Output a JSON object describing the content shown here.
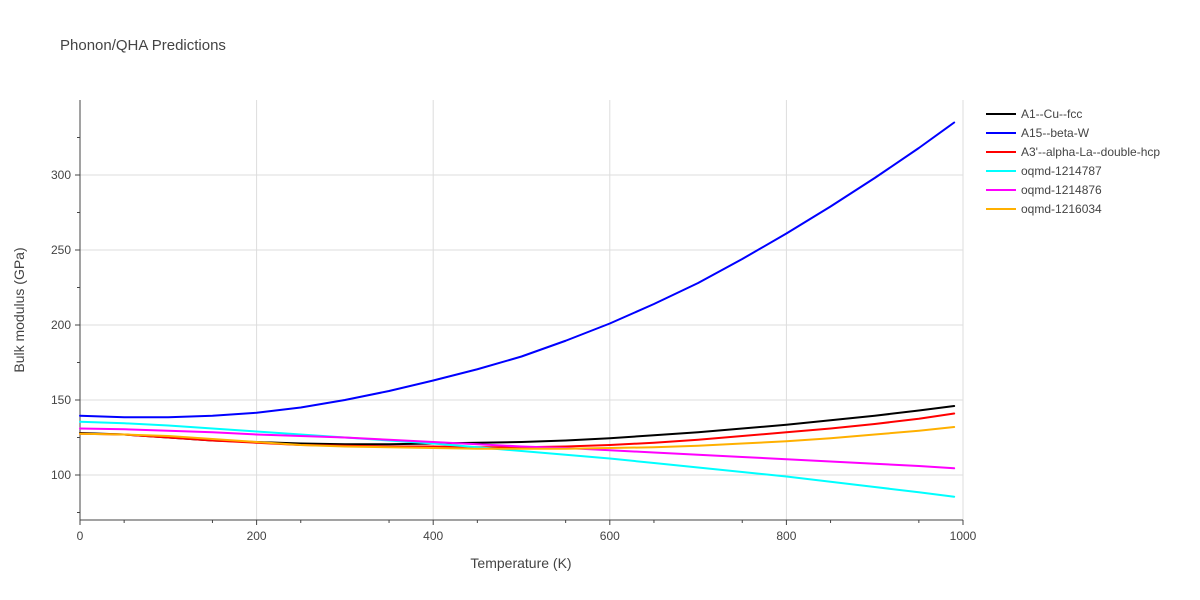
{
  "chart_data": {
    "type": "line",
    "title": "Phonon/QHA Predictions",
    "xlabel": "Temperature (K)",
    "ylabel": "Bulk modulus (GPa)",
    "xlim": [
      0,
      1000
    ],
    "ylim": [
      70,
      350
    ],
    "x_ticks": [
      0,
      200,
      400,
      600,
      800,
      1000
    ],
    "y_ticks": [
      100,
      150,
      200,
      250,
      300
    ],
    "grid": true,
    "legend_position": "right",
    "series": [
      {
        "name": "A1--Cu--fcc",
        "color": "#000000",
        "x": [
          0,
          50,
          100,
          150,
          200,
          250,
          300,
          350,
          400,
          450,
          500,
          550,
          600,
          650,
          700,
          750,
          800,
          850,
          900,
          950,
          990
        ],
        "y": [
          128,
          127,
          125,
          123,
          122,
          121,
          120.5,
          120.5,
          121,
          121.5,
          122,
          123,
          124.5,
          126.5,
          128.5,
          131,
          133.5,
          136.5,
          139.5,
          143,
          146
        ]
      },
      {
        "name": "A15--beta-W",
        "color": "#0000ff",
        "x": [
          0,
          50,
          100,
          150,
          200,
          250,
          300,
          350,
          400,
          450,
          500,
          550,
          600,
          650,
          700,
          750,
          800,
          850,
          900,
          950,
          990
        ],
        "y": [
          139.5,
          138.5,
          138.5,
          139.5,
          141.5,
          145,
          150,
          156,
          163,
          170.5,
          179,
          189.5,
          201,
          214,
          228,
          244,
          261,
          279,
          298,
          318,
          335
        ]
      },
      {
        "name": "A3'--alpha-La--double-hcp",
        "color": "#ff0000",
        "x": [
          0,
          50,
          100,
          150,
          200,
          250,
          300,
          350,
          400,
          450,
          500,
          550,
          600,
          650,
          700,
          750,
          800,
          850,
          900,
          950,
          990
        ],
        "y": [
          127.5,
          127,
          125,
          123,
          121.5,
          120,
          119.5,
          119,
          119,
          118.5,
          118.5,
          119,
          120,
          121.5,
          123.5,
          126,
          128.5,
          131,
          134,
          137.5,
          141
        ]
      },
      {
        "name": "oqmd-1214787",
        "color": "#00ffff",
        "x": [
          0,
          50,
          100,
          150,
          200,
          250,
          300,
          350,
          400,
          450,
          500,
          550,
          600,
          650,
          700,
          750,
          800,
          850,
          900,
          950,
          990
        ],
        "y": [
          135.5,
          134.5,
          133,
          131,
          129,
          127,
          125,
          123,
          121,
          118.5,
          116,
          113.5,
          111,
          108,
          105,
          102,
          99,
          95.5,
          92,
          88.5,
          85.5
        ]
      },
      {
        "name": "oqmd-1214876",
        "color": "#ff00ff",
        "x": [
          0,
          50,
          100,
          150,
          200,
          250,
          300,
          350,
          400,
          450,
          500,
          550,
          600,
          650,
          700,
          750,
          800,
          850,
          900,
          950,
          990
        ],
        "y": [
          131,
          130.5,
          129.5,
          128.5,
          127,
          126,
          125,
          123.5,
          122,
          120.5,
          119,
          118,
          116.5,
          115,
          113.5,
          112,
          110.5,
          109,
          107.5,
          106,
          104.5
        ]
      },
      {
        "name": "oqmd-1216034",
        "color": "#ffb000",
        "x": [
          0,
          50,
          100,
          150,
          200,
          250,
          300,
          350,
          400,
          450,
          500,
          550,
          600,
          650,
          700,
          750,
          800,
          850,
          900,
          950,
          990
        ],
        "y": [
          127.5,
          127,
          126,
          124,
          122,
          120,
          119,
          118.5,
          118,
          117.5,
          117.5,
          117.5,
          118,
          118.5,
          119.5,
          121,
          122.5,
          124.5,
          127,
          129.5,
          132
        ]
      }
    ]
  }
}
